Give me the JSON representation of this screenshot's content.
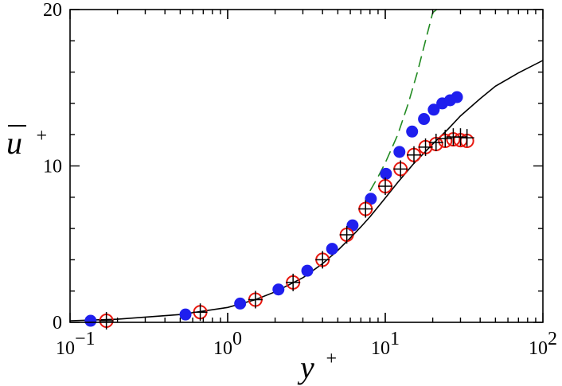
{
  "chart_data": {
    "type": "scatter",
    "title": "",
    "xlabel": "y",
    "xlabel_sup": "+",
    "ylabel": "u",
    "ylabel_sup": "+",
    "xscale": "log",
    "xlim": [
      0.1,
      100
    ],
    "ylim": [
      0,
      20
    ],
    "xticks": [
      {
        "value": 0.1,
        "base": "10",
        "exp": "−1"
      },
      {
        "value": 1,
        "base": "10",
        "exp": "0"
      },
      {
        "value": 10,
        "base": "10",
        "exp": "1"
      },
      {
        "value": 100,
        "base": "10",
        "exp": "2"
      }
    ],
    "yticks": [
      {
        "value": 0,
        "label": "0"
      },
      {
        "value": 10,
        "label": "10"
      },
      {
        "value": 20,
        "label": "20"
      }
    ],
    "grid": false,
    "legend": "none",
    "series": [
      {
        "kind": "line",
        "style": "solid",
        "color": "#000000",
        "x": [
          0.1,
          0.2,
          0.5,
          1.0,
          1.5,
          2.0,
          3.0,
          4.0,
          5.0,
          6.0,
          7.0,
          8.0,
          10.0,
          12.0,
          15.0,
          20.0,
          25.0,
          30.0,
          40.0,
          50.0,
          70.0,
          100.0
        ],
        "y": [
          0.1,
          0.2,
          0.5,
          0.95,
          1.45,
          1.95,
          2.85,
          3.75,
          4.6,
          5.4,
          6.1,
          6.75,
          7.95,
          8.95,
          10.1,
          11.4,
          12.35,
          13.2,
          14.3,
          15.1,
          15.95,
          16.75
        ]
      },
      {
        "kind": "line",
        "style": "dashed",
        "color": "#228b22",
        "x": [
          8.0,
          9.0,
          10.0,
          12.0,
          14.0,
          16.0,
          18.0,
          20.0,
          21.2
        ],
        "y": [
          8.4,
          9.3,
          10.2,
          12.0,
          14.0,
          16.0,
          18.0,
          19.8,
          20.0
        ]
      },
      {
        "kind": "markers",
        "marker": "filled-circle",
        "color": "#1f1fee",
        "x": [
          0.135,
          0.54,
          1.2,
          2.1,
          3.2,
          4.6,
          6.2,
          8.1,
          10.1,
          12.3,
          14.8,
          17.6,
          20.3,
          23.0,
          25.8,
          28.5
        ],
        "y": [
          0.1,
          0.5,
          1.2,
          2.1,
          3.3,
          4.7,
          6.2,
          7.9,
          9.5,
          10.9,
          12.2,
          13.0,
          13.6,
          14.0,
          14.2,
          14.4
        ]
      },
      {
        "kind": "markers",
        "marker": "open-circle",
        "color": "#e8180f",
        "x": [
          0.17,
          0.67,
          1.5,
          2.6,
          4.0,
          5.7,
          7.5,
          10.0,
          12.5,
          15.2,
          18.0,
          21.0,
          24.0,
          27.0,
          30.0,
          33.0
        ],
        "y": [
          0.1,
          0.65,
          1.45,
          2.55,
          4.0,
          5.6,
          7.25,
          8.7,
          9.8,
          10.7,
          11.2,
          11.4,
          11.6,
          11.7,
          11.65,
          11.6
        ]
      },
      {
        "kind": "markers",
        "marker": "plus",
        "color": "#000000",
        "x": [
          0.17,
          0.67,
          1.5,
          2.6,
          4.0,
          5.7,
          7.5,
          10.0,
          12.5,
          15.2,
          18.0,
          21.0,
          24.0,
          27.0,
          30.0,
          33.0
        ],
        "y": [
          0.1,
          0.65,
          1.45,
          2.55,
          4.0,
          5.6,
          7.25,
          8.7,
          9.8,
          10.7,
          11.2,
          11.5,
          11.75,
          11.85,
          11.85,
          11.8
        ]
      }
    ]
  }
}
